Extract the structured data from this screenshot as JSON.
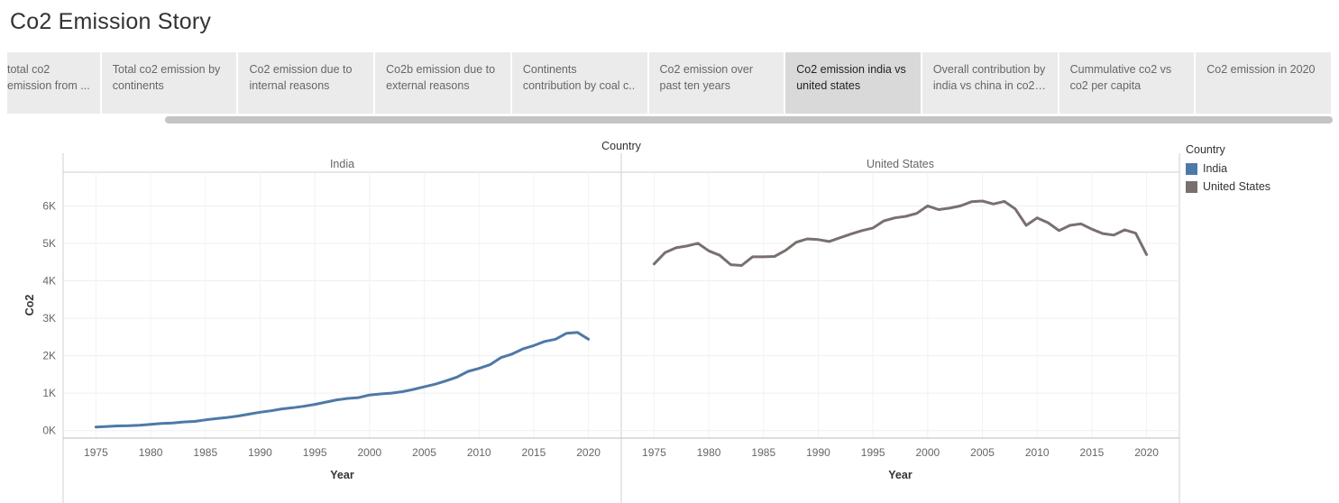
{
  "story": {
    "title": "Co2 Emission Story",
    "tabs": [
      {
        "label": "total co2 emission from ..."
      },
      {
        "label": "Total co2 emission by continents"
      },
      {
        "label": "Co2 emission due to internal reasons"
      },
      {
        "label": "Co2b emission due to external reasons"
      },
      {
        "label": "Continents contribution by coal c.."
      },
      {
        "label": "Co2 emission over past ten years"
      },
      {
        "label": "Co2 emission india vs united states",
        "active": true
      },
      {
        "label": "Overall contribution by india vs china in co2 e.."
      },
      {
        "label": "Cummulative co2 vs co2 per capita"
      },
      {
        "label": "Co2 emission in 2020"
      }
    ]
  },
  "legend": {
    "title": "Country",
    "items": [
      {
        "label": "India",
        "color": "#4e79a7"
      },
      {
        "label": "United States",
        "color": "#79706e"
      }
    ]
  },
  "chart_data": {
    "type": "line",
    "column_header": "Country",
    "ylabel": "Co2",
    "xlabel": "Year",
    "ylim": [
      -200,
      6900
    ],
    "yticks": [
      0,
      1000,
      2000,
      3000,
      4000,
      5000,
      6000
    ],
    "ytick_labels": [
      "0K",
      "1K",
      "2K",
      "3K",
      "4K",
      "5K",
      "6K"
    ],
    "xlim": [
      1972,
      2023
    ],
    "xticks": [
      1975,
      1980,
      1985,
      1990,
      1995,
      2000,
      2005,
      2010,
      2015,
      2020
    ],
    "grid": true,
    "panels": [
      {
        "name": "India",
        "color": "#4e79a7",
        "x": [
          1975,
          1976,
          1977,
          1978,
          1979,
          1980,
          1981,
          1982,
          1983,
          1984,
          1985,
          1986,
          1987,
          1988,
          1989,
          1990,
          1991,
          1992,
          1993,
          1994,
          1995,
          1996,
          1997,
          1998,
          1999,
          2000,
          2001,
          2002,
          2003,
          2004,
          2005,
          2006,
          2007,
          2008,
          2009,
          2010,
          2011,
          2012,
          2013,
          2014,
          2015,
          2016,
          2017,
          2018,
          2019,
          2020
        ],
        "values": [
          95,
          110,
          125,
          130,
          145,
          165,
          190,
          205,
          230,
          245,
          285,
          320,
          350,
          390,
          440,
          490,
          530,
          580,
          610,
          650,
          700,
          760,
          820,
          860,
          880,
          950,
          980,
          1000,
          1040,
          1100,
          1170,
          1240,
          1330,
          1430,
          1580,
          1660,
          1760,
          1950,
          2040,
          2180,
          2270,
          2380,
          2440,
          2600,
          2620,
          2440
        ]
      },
      {
        "name": "United States",
        "color": "#79706e",
        "x": [
          1975,
          1976,
          1977,
          1978,
          1979,
          1980,
          1981,
          1982,
          1983,
          1984,
          1985,
          1986,
          1987,
          1988,
          1989,
          1990,
          1991,
          1992,
          1993,
          1994,
          1995,
          1996,
          1997,
          1998,
          1999,
          2000,
          2001,
          2002,
          2003,
          2004,
          2005,
          2006,
          2007,
          2008,
          2009,
          2010,
          2011,
          2012,
          2013,
          2014,
          2015,
          2016,
          2017,
          2018,
          2019,
          2020
        ],
        "values": [
          4450,
          4750,
          4880,
          4930,
          5000,
          4800,
          4680,
          4430,
          4410,
          4640,
          4640,
          4650,
          4810,
          5030,
          5120,
          5100,
          5050,
          5150,
          5250,
          5340,
          5410,
          5600,
          5680,
          5720,
          5800,
          6000,
          5900,
          5940,
          6000,
          6110,
          6130,
          6050,
          6120,
          5920,
          5480,
          5680,
          5550,
          5340,
          5480,
          5520,
          5380,
          5260,
          5220,
          5360,
          5270,
          4700
        ]
      }
    ]
  }
}
